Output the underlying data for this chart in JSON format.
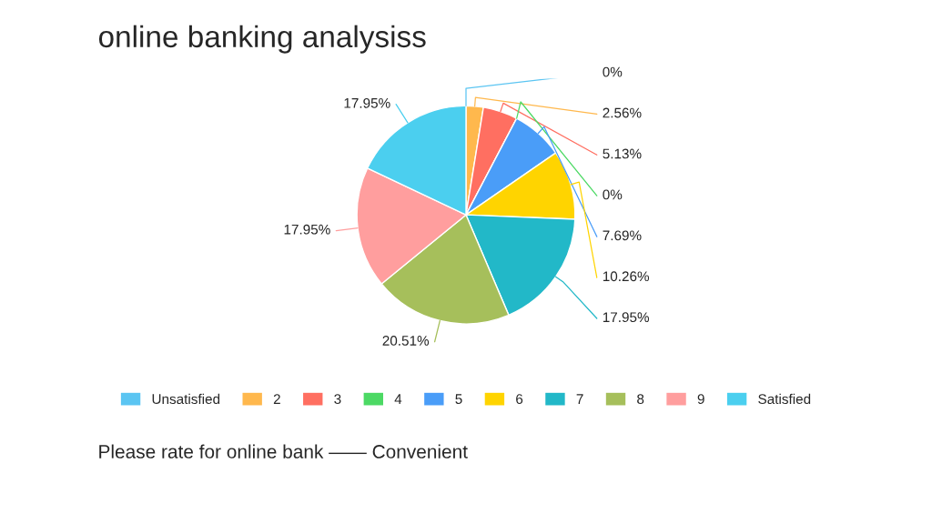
{
  "chart_data": {
    "type": "pie",
    "title": "online banking analysiss",
    "categories": [
      "Unsatisfied",
      "2",
      "3",
      "4",
      "5",
      "6",
      "7",
      "8",
      "9",
      "Satisfied"
    ],
    "values": [
      0,
      2.56,
      5.13,
      0,
      7.69,
      10.26,
      17.95,
      20.51,
      17.95,
      17.95
    ],
    "value_labels": [
      "0%",
      "2.56%",
      "5.13%",
      "0%",
      "7.69%",
      "10.26%",
      "17.95%",
      "20.51%",
      "17.95%",
      "17.95%"
    ],
    "colors": [
      "#5bc5f2",
      "#ffb84d",
      "#ff6f61",
      "#4cd964",
      "#4a9df8",
      "#ffd400",
      "#22b8c8",
      "#a6bf5b",
      "#ff9e9e",
      "#4bcfef"
    ],
    "legend": "bottom",
    "annotations": [
      "Please rate for online bank —— Convenient"
    ]
  }
}
